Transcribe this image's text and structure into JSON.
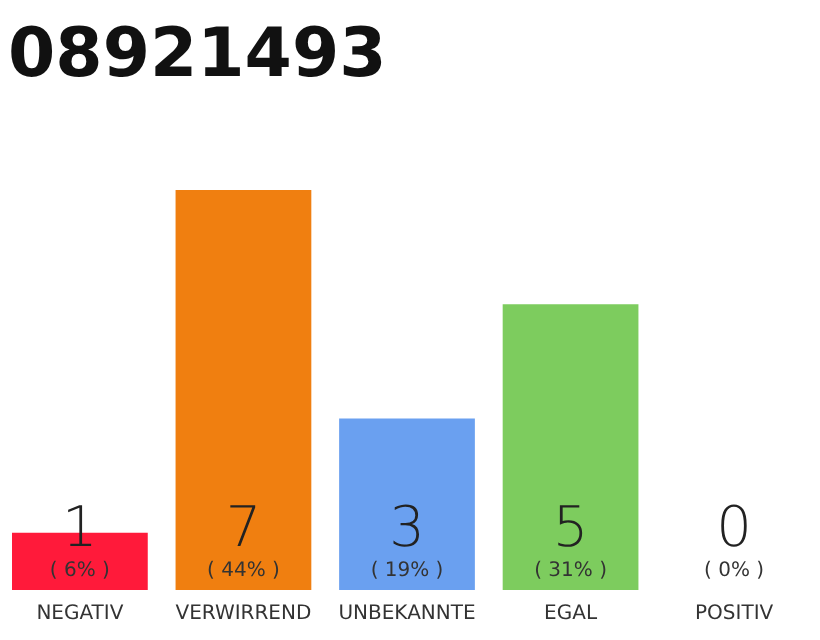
{
  "chart_data": {
    "type": "bar",
    "title": "08921493",
    "categories": [
      "NEGATIV",
      "VERWIRREND",
      "UNBEKANNTE",
      "EGAL",
      "POSITIV"
    ],
    "values": [
      1,
      7,
      3,
      5,
      0
    ],
    "colors": [
      "#ff1a3a",
      "#f07f10",
      "#6aa0f0",
      "#7dcc5e",
      "#cccccc"
    ],
    "tick_labels": "x",
    "data_labels": true,
    "annotations": [
      {
        "text": "( 6% )",
        "x": "NEGATIV",
        "y": 0
      },
      {
        "text": "( 44% )",
        "x": "VERWIRREND",
        "y": 0
      },
      {
        "text": "( 19% )",
        "x": "UNBEKANNTE",
        "y": 0
      },
      {
        "text": "( 31% )",
        "x": "EGAL",
        "y": 0
      },
      {
        "text": "( 0% )",
        "x": "POSITIV",
        "y": 0
      }
    ]
  }
}
